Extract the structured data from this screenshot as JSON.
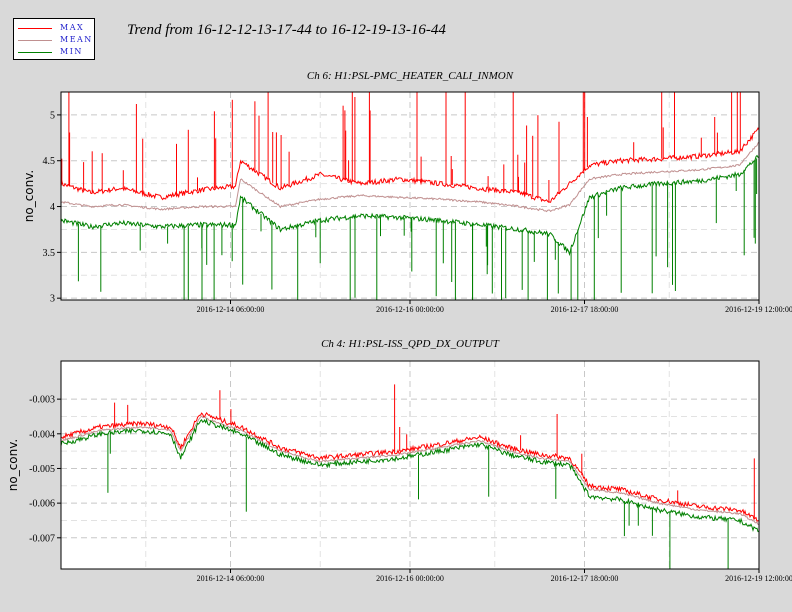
{
  "title": "Trend from 16-12-12-13-17-44 to 16-12-19-13-16-44",
  "legend": [
    {
      "label": "MAX",
      "color": "#ff0000"
    },
    {
      "label": "MEAN",
      "color": "#c09090"
    },
    {
      "label": "MIN",
      "color": "#008000"
    }
  ],
  "colors": {
    "max": "#ff0000",
    "mean": "#c09090",
    "min": "#008000",
    "background": "#d9d9d9",
    "plot_bg": "#ffffff",
    "grid": "#c8c8c8"
  },
  "chart_data": [
    {
      "type": "line",
      "title": "Ch 6: H1:PSL-PMC_HEATER_CALI_INMON",
      "ylabel": "no_conv.",
      "xlabel": "",
      "x_ticks": [
        "2016-12-14 06:00:00",
        "2016-12-16 00:00:00",
        "2016-12-17 18:00:00",
        "2016-12-19 12:00:00"
      ],
      "y_ticks": [
        3,
        3.5,
        4,
        4.5,
        5
      ],
      "ylim": [
        2.98,
        5.25
      ],
      "xlim_days": [
        0,
        7
      ],
      "grid": true,
      "series": [
        {
          "name": "MAX",
          "x": [
            0,
            0.3,
            0.6,
            1,
            1.4,
            1.75,
            1.8,
            2.2,
            2.6,
            3,
            3.4,
            3.8,
            4.2,
            4.6,
            4.9,
            5.1,
            5.3,
            5.6,
            6,
            6.4,
            6.8,
            7
          ],
          "y": [
            4.25,
            4.15,
            4.2,
            4.1,
            4.18,
            4.22,
            4.5,
            4.2,
            4.35,
            4.25,
            4.3,
            4.25,
            4.2,
            4.15,
            4.05,
            4.25,
            4.45,
            4.5,
            4.52,
            4.55,
            4.6,
            4.85
          ]
        },
        {
          "name": "MEAN",
          "x": [
            0,
            0.3,
            0.6,
            1,
            1.4,
            1.75,
            1.8,
            2.2,
            2.6,
            3,
            3.4,
            3.8,
            4.2,
            4.6,
            4.9,
            5.1,
            5.3,
            5.6,
            6,
            6.4,
            6.8,
            7
          ],
          "y": [
            4.05,
            4.0,
            4.02,
            3.97,
            4.0,
            4.0,
            4.3,
            4.0,
            4.08,
            4.12,
            4.1,
            4.08,
            4.05,
            4.0,
            3.95,
            4.02,
            4.3,
            4.35,
            4.38,
            4.4,
            4.45,
            4.7
          ]
        },
        {
          "name": "MIN",
          "x": [
            0,
            0.3,
            0.6,
            1,
            1.4,
            1.75,
            1.8,
            2.2,
            2.6,
            3,
            3.4,
            3.8,
            4.2,
            4.6,
            4.9,
            5.1,
            5.3,
            5.6,
            6,
            6.4,
            6.8,
            7
          ],
          "y": [
            3.85,
            3.78,
            3.82,
            3.78,
            3.8,
            3.8,
            4.1,
            3.75,
            3.85,
            3.9,
            3.88,
            3.85,
            3.8,
            3.75,
            3.7,
            3.5,
            4.1,
            4.2,
            4.25,
            4.28,
            4.35,
            4.55
          ]
        }
      ]
    },
    {
      "type": "line",
      "title": "Ch 4: H1:PSL-ISS_QPD_DX_OUTPUT",
      "ylabel": "no_conv.",
      "xlabel": "",
      "x_ticks": [
        "2016-12-14 06:00:00",
        "2016-12-16 00:00:00",
        "2016-12-17 18:00:00",
        "2016-12-19 12:00:00"
      ],
      "y_ticks": [
        -0.007,
        -0.006,
        -0.005,
        -0.004,
        -0.003
      ],
      "ylim": [
        -0.0079,
        -0.0019
      ],
      "xlim_days": [
        0,
        7
      ],
      "grid": true,
      "series": [
        {
          "name": "MAX",
          "x": [
            0,
            0.4,
            0.8,
            1.1,
            1.2,
            1.4,
            1.8,
            2.2,
            2.6,
            3,
            3.4,
            3.8,
            4.2,
            4.5,
            4.8,
            5.1,
            5.3,
            5.6,
            6,
            6.4,
            6.8,
            7
          ],
          "y": [
            -0.0041,
            -0.0038,
            -0.0037,
            -0.0038,
            -0.0044,
            -0.0034,
            -0.0038,
            -0.0044,
            -0.0047,
            -0.0046,
            -0.0045,
            -0.0043,
            -0.0041,
            -0.0044,
            -0.0046,
            -0.0047,
            -0.0055,
            -0.0056,
            -0.0059,
            -0.0061,
            -0.0062,
            -0.0065
          ]
        },
        {
          "name": "MEAN",
          "x": [
            0,
            0.4,
            0.8,
            1.1,
            1.2,
            1.4,
            1.8,
            2.2,
            2.6,
            3,
            3.4,
            3.8,
            4.2,
            4.5,
            4.8,
            5.1,
            5.3,
            5.6,
            6,
            6.4,
            6.8,
            7
          ],
          "y": [
            -0.0042,
            -0.0039,
            -0.0038,
            -0.0039,
            -0.0045,
            -0.0035,
            -0.0039,
            -0.0045,
            -0.0048,
            -0.0047,
            -0.0046,
            -0.0044,
            -0.0042,
            -0.0045,
            -0.0047,
            -0.0048,
            -0.0056,
            -0.0057,
            -0.006,
            -0.0062,
            -0.0063,
            -0.0066
          ]
        },
        {
          "name": "MIN",
          "x": [
            0,
            0.4,
            0.8,
            1.1,
            1.2,
            1.4,
            1.8,
            2.2,
            2.6,
            3,
            3.4,
            3.8,
            4.2,
            4.5,
            4.8,
            5.1,
            5.3,
            5.6,
            6,
            6.4,
            6.8,
            7
          ],
          "y": [
            -0.0043,
            -0.004,
            -0.0039,
            -0.004,
            -0.0047,
            -0.0036,
            -0.004,
            -0.0046,
            -0.0049,
            -0.0048,
            -0.0047,
            -0.0045,
            -0.0043,
            -0.0046,
            -0.0048,
            -0.0049,
            -0.0058,
            -0.0059,
            -0.0062,
            -0.0064,
            -0.0065,
            -0.0068
          ]
        }
      ]
    }
  ]
}
